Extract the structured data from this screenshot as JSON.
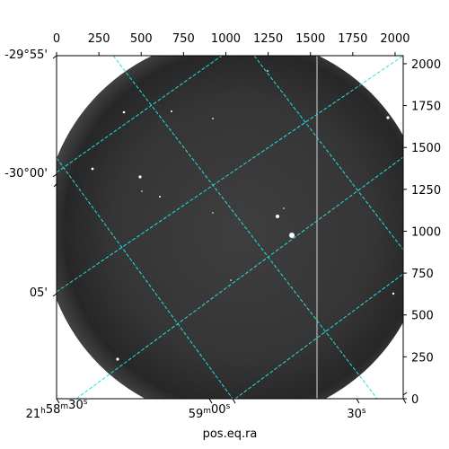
{
  "chart_data": {
    "type": "image",
    "title": "",
    "xlabel": "pos.eq.ra",
    "ylabel": "",
    "pixel_axes": {
      "x_ticks": [
        "0",
        "250",
        "500",
        "750",
        "1000",
        "1250",
        "1500",
        "1750",
        "2000"
      ],
      "y_ticks": [
        "0",
        "250",
        "500",
        "750",
        "1000",
        "1250",
        "1500",
        "1750",
        "2000"
      ],
      "xlim": [
        0,
        2048
      ],
      "ylim": [
        0,
        2048
      ]
    },
    "world_axes": {
      "ra_ticks": [
        {
          "h": "21",
          "m": "58",
          "s": "30",
          "hsup": "h",
          "msup": "m",
          "ssup": "s"
        },
        {
          "h": "",
          "m": "59",
          "s": "00",
          "hsup": "",
          "msup": "m",
          "ssup": "s"
        },
        {
          "h": "",
          "m": "",
          "s": "30",
          "hsup": "",
          "msup": "",
          "ssup": "s"
        }
      ],
      "dec_ticks": [
        "-29°55'",
        "-30°00'",
        "05'"
      ]
    },
    "grid": true,
    "grid_color": "#21e0e0",
    "colormap": "gray"
  }
}
